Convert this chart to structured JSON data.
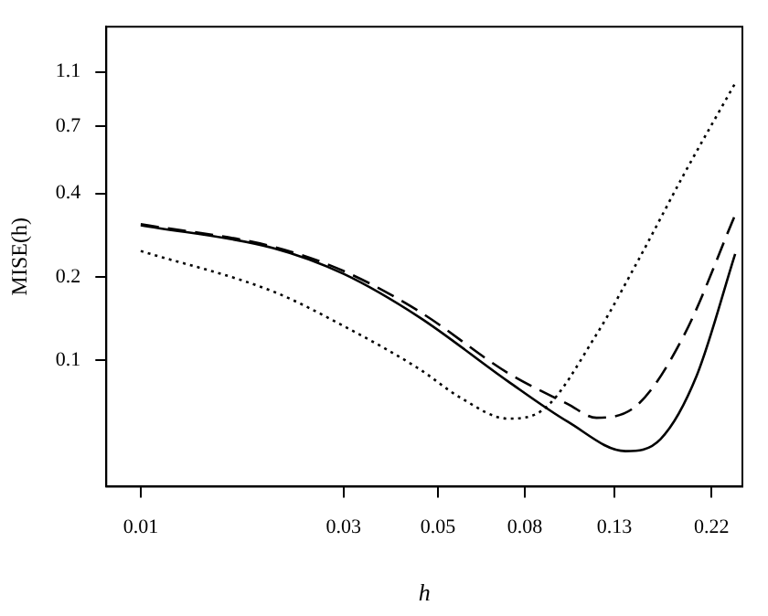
{
  "chart_data": {
    "type": "line",
    "xlabel": "h",
    "ylabel": "MISE(h)",
    "log": "xy",
    "grid": false,
    "legend": false,
    "marker": "none",
    "xlim": [
      0.0083,
      0.26
    ],
    "xticks": [
      0.01,
      0.03,
      0.05,
      0.08,
      0.13,
      0.22
    ],
    "ylim": [
      0.035,
      1.6
    ],
    "yticks": [
      0.1,
      0.2,
      0.4,
      0.7,
      1.1
    ],
    "series": [
      {
        "color": "#000000",
        "line_style": "solid",
        "x": [
          0.01,
          0.0205,
          0.03,
          0.0452,
          0.073,
          0.101,
          0.138,
          0.167,
          0.203,
          0.25
        ],
        "values": [
          0.307,
          0.254,
          0.205,
          0.143,
          0.084,
          0.06,
          0.047,
          0.052,
          0.088,
          0.242
        ]
      },
      {
        "color": "#000000",
        "line_style": "dashed",
        "x": [
          0.01,
          0.0205,
          0.03,
          0.0452,
          0.073,
          0.101,
          0.118,
          0.148,
          0.19,
          0.25
        ],
        "values": [
          0.31,
          0.257,
          0.21,
          0.15,
          0.09,
          0.0695,
          0.062,
          0.0695,
          0.124,
          0.335
        ]
      },
      {
        "color": "#000000",
        "line_style": "dotted",
        "x": [
          0.01,
          0.0205,
          0.03,
          0.0452,
          0.0567,
          0.073,
          0.088,
          0.118,
          0.148,
          0.19,
          0.25
        ],
        "values": [
          0.248,
          0.177,
          0.133,
          0.093,
          0.073,
          0.0616,
          0.066,
          0.124,
          0.23,
          0.473,
          1.0
        ]
      }
    ]
  }
}
